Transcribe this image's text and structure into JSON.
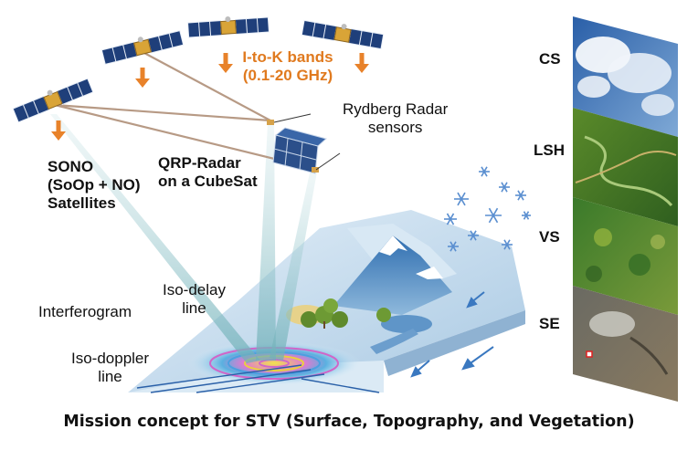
{
  "labels": {
    "sono": [
      "SONO",
      "(SoOp + NO)",
      "Satellites"
    ],
    "bands": [
      "I-to-K bands",
      "(0.1-20 GHz)"
    ],
    "rydberg": [
      "Rydberg Radar",
      "sensors"
    ],
    "qrp": [
      "QRP-Radar",
      "on a CubeSat"
    ],
    "interferogram": "Interferogram",
    "iso_delay": [
      "Iso-delay",
      "line"
    ],
    "iso_doppler": [
      "Iso-doppler",
      "line"
    ]
  },
  "panels": [
    {
      "label": "CS"
    },
    {
      "label": "LSH"
    },
    {
      "label": "VS"
    },
    {
      "label": "SE"
    }
  ],
  "caption": "Mission concept for STV (Surface, Topography, and Vegetation)",
  "colors": {
    "orange": "#e8822a",
    "beam": "#8fc2c7",
    "terrain": "#c4dcef",
    "solar_panel": "#1f3f7a",
    "snowflake": "#5b8fd0"
  }
}
